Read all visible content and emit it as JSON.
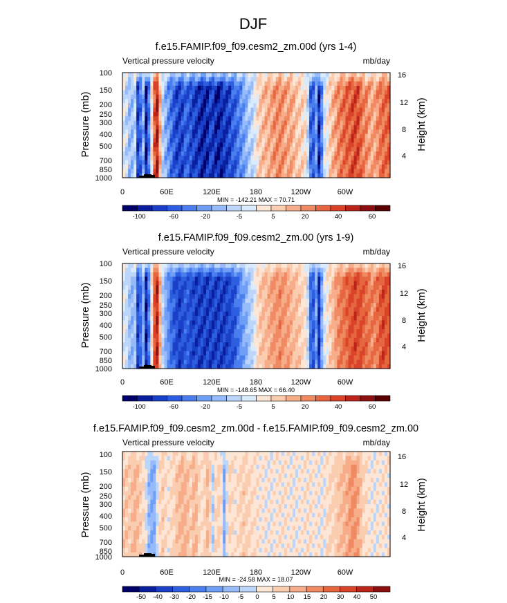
{
  "figure_title": "DJF",
  "palette": {
    "full": [
      "#00006b",
      "#0a1f9e",
      "#1a40c8",
      "#2e5ee0",
      "#4b7ff0",
      "#6f9ef7",
      "#97bbfa",
      "#bcd6fb",
      "#d9ebfc",
      "#fde6d6",
      "#fbcdb0",
      "#f7ac8a",
      "#f08a63",
      "#e6663f",
      "#d9432a",
      "#bb2519",
      "#8c1010",
      "#5a0000"
    ]
  },
  "chart_data": [
    {
      "type": "heatmap",
      "title": "f.e15.FAMIP.f09_f09.cesm2_zm.00d (yrs 1-4)",
      "left_label": "Vertical pressure velocity",
      "right_label": "mb/day",
      "ylabel": "Pressure (mb)",
      "y2label": "Height (km)",
      "xticks": [
        "0",
        "60E",
        "120E",
        "180",
        "120W",
        "60W"
      ],
      "yticks": [
        "100",
        "150",
        "200",
        "250",
        "300",
        "400",
        "500",
        "700",
        "850",
        "1000"
      ],
      "y2ticks": [
        "16",
        "12",
        "8",
        "4"
      ],
      "minmax": "MIN = -142.21  MAX =  70.71",
      "colorbar_labels": [
        "-100",
        "-60",
        "-20",
        "-5",
        "5",
        "20",
        "40",
        "60"
      ],
      "colorbar_bins": 18,
      "bands": [
        [
          0,
          8
        ],
        [
          6,
          7
        ],
        [
          10,
          5
        ],
        [
          14,
          9
        ],
        [
          18,
          2
        ],
        [
          22,
          3
        ],
        [
          26,
          6
        ],
        [
          30,
          1
        ],
        [
          34,
          4
        ],
        [
          40,
          13
        ],
        [
          45,
          15
        ],
        [
          52,
          7
        ],
        [
          58,
          5
        ],
        [
          66,
          3
        ],
        [
          74,
          2
        ],
        [
          84,
          3
        ],
        [
          96,
          2
        ],
        [
          108,
          1
        ],
        [
          118,
          2
        ],
        [
          128,
          1
        ],
        [
          138,
          2
        ],
        [
          150,
          3
        ],
        [
          160,
          5
        ],
        [
          172,
          7
        ],
        [
          182,
          10
        ],
        [
          196,
          11
        ],
        [
          210,
          12
        ],
        [
          224,
          11
        ],
        [
          236,
          10
        ],
        [
          246,
          9
        ],
        [
          250,
          4
        ],
        [
          254,
          2
        ],
        [
          258,
          6
        ],
        [
          262,
          1
        ],
        [
          266,
          4
        ],
        [
          270,
          8
        ],
        [
          278,
          10
        ],
        [
          288,
          12
        ],
        [
          300,
          13
        ],
        [
          312,
          14
        ],
        [
          324,
          12
        ],
        [
          336,
          11
        ],
        [
          350,
          13
        ],
        [
          360,
          13
        ]
      ],
      "noise": 1.2
    },
    {
      "type": "heatmap",
      "title": "f.e15.FAMIP.f09_f09.cesm2_zm.00 (yrs 1-9)",
      "left_label": "Vertical pressure velocity",
      "right_label": "mb/day",
      "ylabel": "Pressure (mb)",
      "y2label": "Height (km)",
      "xticks": [
        "0",
        "60E",
        "120E",
        "180",
        "120W",
        "60W"
      ],
      "yticks": [
        "100",
        "150",
        "200",
        "250",
        "300",
        "400",
        "500",
        "700",
        "850",
        "1000"
      ],
      "y2ticks": [
        "16",
        "12",
        "8",
        "4"
      ],
      "minmax": "MIN = -148.65  MAX =  66.40",
      "colorbar_labels": [
        "-100",
        "-60",
        "-20",
        "-5",
        "5",
        "20",
        "40",
        "60"
      ],
      "colorbar_bins": 18,
      "bands": [
        [
          0,
          8
        ],
        [
          6,
          7
        ],
        [
          10,
          5
        ],
        [
          14,
          8
        ],
        [
          18,
          2
        ],
        [
          22,
          3
        ],
        [
          26,
          6
        ],
        [
          30,
          1
        ],
        [
          34,
          4
        ],
        [
          40,
          13
        ],
        [
          45,
          15
        ],
        [
          52,
          7
        ],
        [
          58,
          5
        ],
        [
          66,
          3
        ],
        [
          74,
          2
        ],
        [
          84,
          3
        ],
        [
          96,
          2
        ],
        [
          108,
          2
        ],
        [
          118,
          2
        ],
        [
          128,
          2
        ],
        [
          138,
          2
        ],
        [
          150,
          3
        ],
        [
          160,
          5
        ],
        [
          172,
          7
        ],
        [
          182,
          10
        ],
        [
          196,
          11
        ],
        [
          210,
          12
        ],
        [
          224,
          11
        ],
        [
          236,
          10
        ],
        [
          246,
          9
        ],
        [
          250,
          4
        ],
        [
          254,
          2
        ],
        [
          258,
          6
        ],
        [
          262,
          1
        ],
        [
          266,
          5
        ],
        [
          270,
          8
        ],
        [
          278,
          10
        ],
        [
          288,
          12
        ],
        [
          300,
          13
        ],
        [
          312,
          14
        ],
        [
          324,
          13
        ],
        [
          336,
          12
        ],
        [
          350,
          14
        ],
        [
          360,
          13
        ]
      ],
      "noise": 0.8
    },
    {
      "type": "heatmap",
      "title": "f.e15.FAMIP.f09_f09.cesm2_zm.00d - f.e15.FAMIP.f09_f09.cesm2_zm.00",
      "left_label": "Vertical pressure velocity",
      "right_label": "mb/day",
      "ylabel": "Pressure (mb)",
      "y2label": "Height (km)",
      "xticks": [
        "0",
        "60E",
        "120E",
        "180",
        "120W",
        "60W"
      ],
      "yticks": [
        "100",
        "150",
        "200",
        "250",
        "300",
        "400",
        "500",
        "700",
        "850",
        "1000"
      ],
      "y2ticks": [
        "16",
        "12",
        "8",
        "4"
      ],
      "minmax": "MIN = -24.58  MAX =  18.07",
      "colorbar_labels": [
        "-50",
        "-40",
        "-30",
        "-20",
        "-15",
        "-10",
        "-5",
        "0",
        "5",
        "10",
        "15",
        "20",
        "30",
        "40",
        "50"
      ],
      "colorbar_bins": 16,
      "bands": [
        [
          0,
          9
        ],
        [
          10,
          9
        ],
        [
          16,
          10
        ],
        [
          22,
          9
        ],
        [
          28,
          8
        ],
        [
          34,
          6
        ],
        [
          40,
          5
        ],
        [
          46,
          8
        ],
        [
          52,
          9
        ],
        [
          60,
          8
        ],
        [
          70,
          9
        ],
        [
          80,
          10
        ],
        [
          90,
          9
        ],
        [
          96,
          10
        ],
        [
          104,
          8
        ],
        [
          110,
          9
        ],
        [
          114,
          10
        ],
        [
          120,
          7
        ],
        [
          126,
          9
        ],
        [
          132,
          8
        ],
        [
          136,
          5
        ],
        [
          140,
          9
        ],
        [
          150,
          8
        ],
        [
          160,
          9
        ],
        [
          180,
          8
        ],
        [
          200,
          8
        ],
        [
          220,
          8
        ],
        [
          240,
          8
        ],
        [
          270,
          8
        ],
        [
          286,
          9
        ],
        [
          300,
          10
        ],
        [
          310,
          11
        ],
        [
          320,
          9
        ],
        [
          330,
          8
        ],
        [
          345,
          8
        ],
        [
          360,
          8
        ]
      ],
      "noise": 0.6
    }
  ]
}
